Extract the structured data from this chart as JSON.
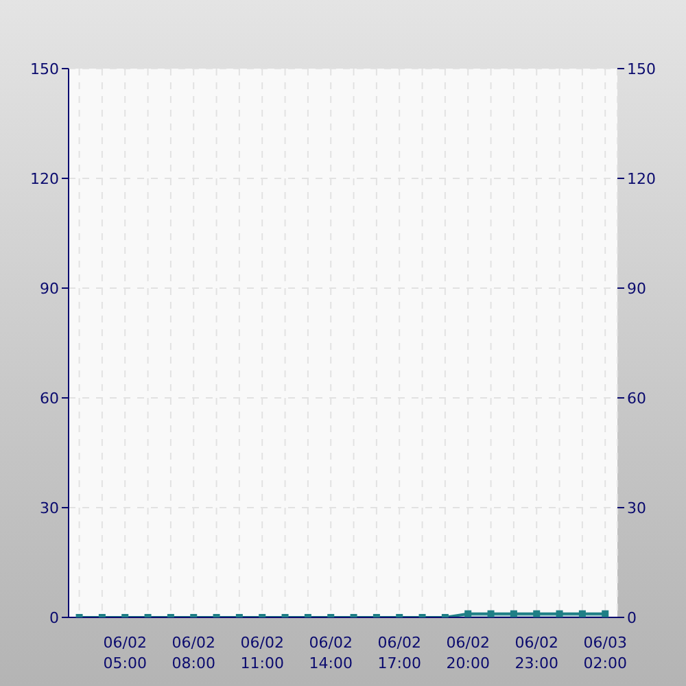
{
  "chart_data": {
    "type": "area",
    "x": [
      "--06-02T03:00",
      "--06-02T04:00",
      "--06-02T05:00",
      "--06-02T06:00",
      "--06-02T07:00",
      "--06-02T08:00",
      "--06-02T09:00",
      "--06-02T10:00",
      "--06-02T11:00",
      "--06-02T12:00",
      "--06-02T13:00",
      "--06-02T14:00",
      "--06-02T15:00",
      "--06-02T16:00",
      "--06-02T17:00",
      "--06-02T18:00",
      "--06-02T19:00",
      "--06-02T20:00",
      "--06-02T21:00",
      "--06-02T22:00",
      "--06-02T23:00",
      "--06-03T00:00",
      "--06-03T01:00",
      "--06-03T02:00"
    ],
    "series": [
      {
        "color": "#1f7f86",
        "values": [
          0,
          0,
          0,
          0,
          0,
          0,
          0,
          0,
          0,
          0,
          0,
          0,
          0,
          0,
          0,
          0,
          0,
          1,
          1,
          1,
          1,
          1,
          1,
          1
        ]
      }
    ],
    "xlim": [
      "--06-02T02:32",
      "--06-03T02:32"
    ],
    "xticks": [
      {
        "value": "--06-02T03:00",
        "label": null
      },
      {
        "value": "--06-02T04:00",
        "label": null
      },
      {
        "value": "--06-02T05:00",
        "label": "06/02\n05:00"
      },
      {
        "value": "--06-02T06:00",
        "label": null
      },
      {
        "value": "--06-02T07:00",
        "label": null
      },
      {
        "value": "--06-02T08:00",
        "label": "06/02\n08:00"
      },
      {
        "value": "--06-02T09:00",
        "label": null
      },
      {
        "value": "--06-02T10:00",
        "label": null
      },
      {
        "value": "--06-02T11:00",
        "label": "06/02\n11:00"
      },
      {
        "value": "--06-02T12:00",
        "label": null
      },
      {
        "value": "--06-02T13:00",
        "label": null
      },
      {
        "value": "--06-02T14:00",
        "label": "06/02\n14:00"
      },
      {
        "value": "--06-02T15:00",
        "label": null
      },
      {
        "value": "--06-02T16:00",
        "label": null
      },
      {
        "value": "--06-02T17:00",
        "label": "06/02\n17:00"
      },
      {
        "value": "--06-02T18:00",
        "label": null
      },
      {
        "value": "--06-02T19:00",
        "label": null
      },
      {
        "value": "--06-02T20:00",
        "label": "06/02\n20:00"
      },
      {
        "value": "--06-02T21:00",
        "label": null
      },
      {
        "value": "--06-02T22:00",
        "label": null
      },
      {
        "value": "--06-02T23:00",
        "label": "06/02\n23:00"
      },
      {
        "value": "--06-03T00:00",
        "label": null
      },
      {
        "value": "--06-03T01:00",
        "label": null
      },
      {
        "value": "--06-03T02:00",
        "label": "06/03\n02:00"
      }
    ],
    "ylim": [
      0,
      150
    ],
    "yticks": [
      0,
      30,
      60,
      90,
      120,
      150
    ],
    "y2lim": [
      0,
      150
    ],
    "y2ticks": [
      0,
      30,
      60,
      90,
      120,
      150
    ],
    "grid": true,
    "marker": "square",
    "line_style": "solid"
  }
}
